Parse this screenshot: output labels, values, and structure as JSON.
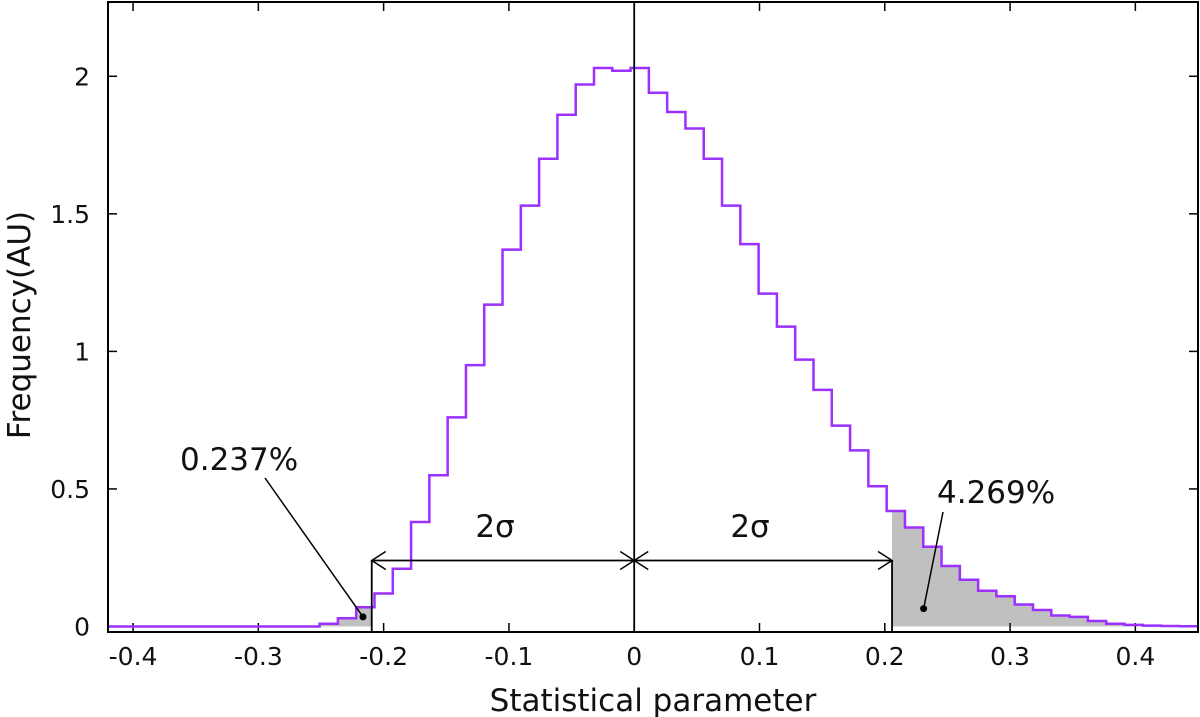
{
  "chart_data": {
    "type": "histogram",
    "title": "",
    "xlabel": "Statistical parameter",
    "ylabel": "Frequency(AU)",
    "xlim": [
      -0.42,
      0.45
    ],
    "ylim": [
      -0.02,
      2.27
    ],
    "x_ticks": [
      -0.4,
      -0.3,
      -0.2,
      -0.1,
      0,
      0.1,
      0.2,
      0.3,
      0.4
    ],
    "x_tick_labels": [
      "-0.4",
      "-0.3",
      "-0.2",
      "-0.1",
      "0",
      "0.1",
      "0.2",
      "0.3",
      "0.4"
    ],
    "y_ticks": [
      0,
      0.5,
      1,
      1.5,
      2
    ],
    "y_tick_labels": [
      "0",
      "0.5",
      "1",
      "1.5",
      "2"
    ],
    "bin_width": 0.0146,
    "bins_start": -0.2511,
    "values": [
      0.01,
      0.03,
      0.07,
      0.12,
      0.21,
      0.38,
      0.55,
      0.76,
      0.95,
      1.17,
      1.37,
      1.53,
      1.7,
      1.86,
      1.97,
      2.03,
      2.02,
      2.03,
      1.94,
      1.87,
      1.81,
      1.7,
      1.53,
      1.39,
      1.21,
      1.09,
      0.97,
      0.86,
      0.73,
      0.64,
      0.51,
      0.42,
      0.36,
      0.29,
      0.22,
      0.17,
      0.13,
      0.11,
      0.08,
      0.06,
      0.04,
      0.035,
      0.02,
      0.01,
      0.006,
      0.003,
      0.002,
      0.001
    ],
    "line_color": "#9b30ff",
    "shade_color": "#c0c0c0",
    "mean": 0,
    "sigma_lines": [
      -0.2095,
      0.2058
    ],
    "labels": {
      "left_tail": "0.237%",
      "right_tail": "4.269%",
      "left_sigma": "2σ",
      "right_sigma": "2σ"
    }
  }
}
